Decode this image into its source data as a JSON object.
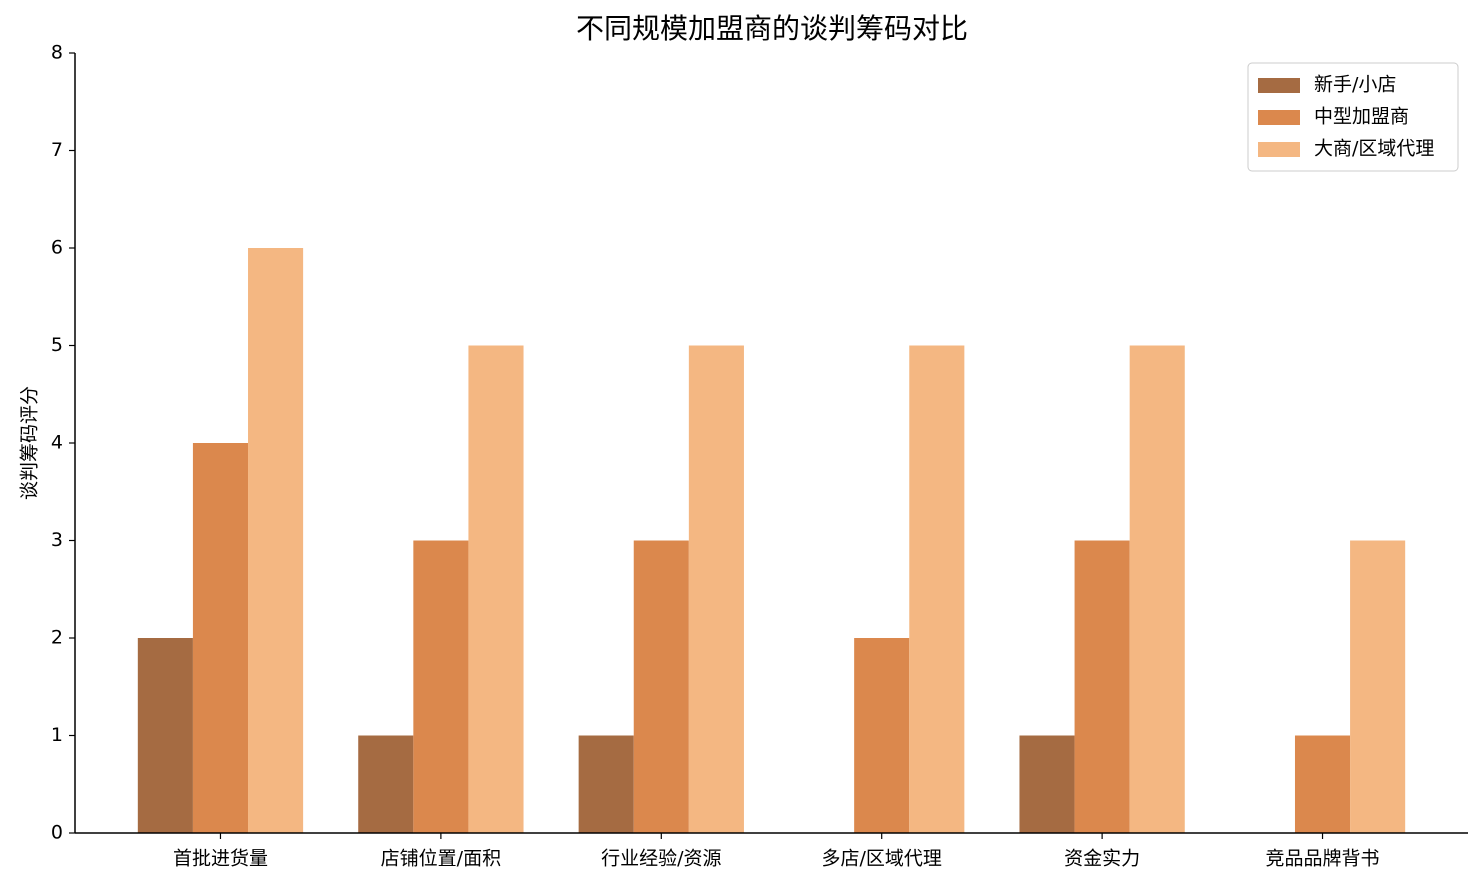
{
  "chart_data": {
    "type": "bar",
    "title": "不同规模加盟商的谈判筹码对比",
    "y_label": "谈判筹码评分",
    "categories": [
      "首批进货量",
      "店铺位置/面积",
      "行业经验/资源",
      "多店/区域代理",
      "资金实力",
      "竞品品牌背书"
    ],
    "series": [
      {
        "name": "新手/小店",
        "color": "#a56b42",
        "values": [
          2,
          1,
          1,
          0,
          1,
          0
        ]
      },
      {
        "name": "中型加盟商",
        "color": "#db884d",
        "values": [
          4,
          3,
          3,
          2,
          3,
          1
        ]
      },
      {
        "name": "大商/区域代理",
        "color": "#f4b782",
        "values": [
          6,
          5,
          5,
          5,
          5,
          3
        ]
      }
    ],
    "ylim": [
      0,
      8
    ],
    "yticks": [
      0,
      1,
      2,
      3,
      4,
      5,
      6,
      7,
      8
    ],
    "grid": false,
    "legend": "upper right"
  }
}
